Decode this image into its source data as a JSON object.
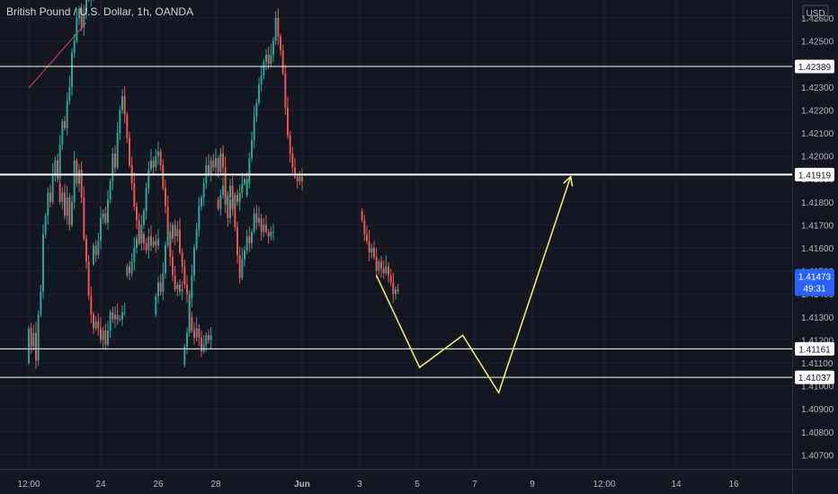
{
  "header": {
    "title": "British Pound / U.S. Dollar, 1h, OANDA"
  },
  "currency_label": "USD",
  "colors": {
    "background": "#131722",
    "grid": "#1f2330",
    "up": "#26a69a",
    "down": "#ef5350",
    "axis_text": "#b2b5be",
    "hline": "#ffffff",
    "projection": "#fff06a",
    "trendline": "#e0424a",
    "current_price_bg": "#2962ff",
    "label_bg": "#ffffff",
    "label_text": "#131722"
  },
  "chart_data": {
    "type": "candlestick",
    "title": "British Pound / U.S. Dollar, 1h, OANDA",
    "ylim": [
      1.407,
      1.426
    ],
    "y_ticks": [
      "1.42600",
      "1.42500",
      "1.42400",
      "1.42300",
      "1.42200",
      "1.42100",
      "1.42000",
      "1.41900",
      "1.41800",
      "1.41700",
      "1.41600",
      "1.41500",
      "1.41400",
      "1.41300",
      "1.41200",
      "1.41100",
      "1.41000",
      "1.40900",
      "1.40800",
      "1.40700"
    ],
    "x_ticks": [
      "12:00",
      "24",
      "26",
      "28",
      "Jun",
      "3",
      "5",
      "7",
      "9",
      "12:00",
      "14",
      "16"
    ],
    "horizontal_levels": [
      {
        "label": "1.42389",
        "value": 1.42389,
        "style": "thin"
      },
      {
        "label": "1.41919",
        "value": 1.41919,
        "style": "thick"
      },
      {
        "label": "1.41161",
        "value": 1.41161,
        "style": "thin"
      },
      {
        "label": "1.41037",
        "value": 1.41037,
        "style": "thin"
      }
    ],
    "current_price": {
      "value": "1.41473",
      "countdown": "49:31"
    },
    "projection_path": [
      {
        "x": "2 Jun 14:00",
        "y": 1.4148
      },
      {
        "x": "4 Jun 02:00",
        "y": 1.4108
      },
      {
        "x": "5 Jun 14:00",
        "y": 1.4122
      },
      {
        "x": "6 Jun 20:00",
        "y": 1.4097
      },
      {
        "x": "9 Jun 08:00",
        "y": 1.4191
      }
    ],
    "trendline": {
      "from": {
        "x": "21 May 12:00",
        "y": 1.42295
      },
      "to": {
        "x": "23 May 12:00",
        "y": 1.4258
      }
    },
    "segments": [
      {
        "from": "21 May 12:00",
        "value": 1.411,
        "path": [
          0.0015,
          -0.0008,
          0.0006,
          -0.0012,
          0.002,
          0.001,
          0.0025,
          0.0008,
          0.001,
          -0.0004,
          0.0012,
          0.0006,
          -0.0008,
          0.0015,
          0.001,
          -0.0003,
          0.0012,
          0.0006,
          0.0015,
          0.0005,
          0.001,
          0.0004,
          -0.0008,
          0.0006,
          0.0008,
          -0.0002,
          0.0003,
          -0.0002
        ]
      },
      {
        "from": "22 May 14:00",
        "value": 1.4188,
        "path": [
          -0.0008,
          0.0004,
          -0.001,
          0.0008,
          -0.0012,
          0.001,
          0.0018,
          -0.001,
          0.0006,
          -0.0012,
          -0.0018,
          -0.001,
          -0.0015,
          -0.0008,
          -0.0006,
          0.0003,
          -0.0003,
          -0.0005,
          0.0004,
          -0.0006,
          0.0006,
          0.0008,
          -0.0003,
          0.0002,
          -0.0002,
          0.0,
          0.0003,
          0.0
        ]
      },
      {
        "from": "23 May 18:00",
        "value": 1.4153,
        "path": [
          0.0008,
          -0.0004,
          0.0006,
          0.001,
          0.0002,
          -0.0004,
          0.001,
          0.0008,
          0.0012,
          -0.0006,
          0.0015,
          0.001,
          0.0006,
          -0.0008,
          -0.001,
          -0.0012,
          -0.0008,
          -0.001,
          -0.0006,
          -0.0008,
          0.0002,
          -0.0004,
          -0.0003,
          0.0006,
          -0.0004,
          0.0002,
          -0.0002,
          0.0003
        ]
      },
      {
        "from": "24 May 22:00",
        "value": 1.4148,
        "path": [
          0.0004,
          -0.0003,
          0.0005,
          0.0006,
          0.0004,
          -0.0002,
          0.0008,
          0.0006,
          0.001,
          0.0008,
          0.0004,
          -0.0003,
          0.0005,
          0.0002,
          -0.0006,
          -0.001,
          -0.0008,
          -0.0012,
          -0.001,
          -0.0008,
          -0.0006,
          0.0002,
          -0.0003,
          0.0001
        ]
      },
      {
        "from": "25 May 22:00",
        "value": 1.4131,
        "path": [
          0.0008,
          0.0006,
          -0.0004,
          0.0008,
          0.0012,
          0.0006,
          -0.0003,
          0.0006,
          -0.0005,
          0.0003,
          -0.001,
          -0.0006,
          -0.0008,
          -0.0004,
          -0.001,
          -0.0006,
          -0.0003,
          0.0004,
          -0.0004,
          -0.0006,
          0.0003,
          0.0004,
          -0.0002,
          0.0002
        ]
      },
      {
        "from": "26 May 22:00",
        "value": 1.4109,
        "path": [
          0.0008,
          0.0006,
          0.0015,
          0.001,
          0.0012,
          0.0008,
          0.001,
          0.0004,
          0.0006,
          0.0008,
          -0.0004,
          0.0006,
          -0.0003,
          0.0004,
          -0.0006,
          0.0008,
          -0.0006,
          -0.0012,
          -0.001,
          0.0008,
          -0.0004,
          0.0006,
          -0.0003,
          0.0004,
          0.0004,
          0.0002,
          -0.0002,
          0.0002
        ]
      },
      {
        "from": "28 May 02:00",
        "value": 1.4181,
        "path": [
          -0.0004,
          0.0006,
          0.0004,
          -0.0008,
          0.0003,
          0.0005,
          -0.001,
          -0.0008,
          -0.0012,
          -0.001,
          0.0008,
          0.0004,
          0.0006,
          -0.0003,
          0.0005,
          0.0008,
          -0.0004,
          0.0002,
          -0.0006,
          0.0003,
          -0.0003,
          -0.0002,
          0.0002,
          0.0
        ]
      },
      {
        "from": "29 May 02:00",
        "value": 1.4183,
        "path": [
          0.0006,
          0.001,
          0.0008,
          0.001,
          0.0006,
          0.0008,
          0.0004,
          0.0006,
          0.0003,
          -0.0004,
          0.0004,
          0.0006,
          0.001,
          -0.0008,
          -0.0006,
          -0.001,
          -0.0015,
          -0.0012,
          -0.0008,
          -0.0006,
          -0.0004,
          -0.0002,
          0.0002,
          -0.0002
        ]
      },
      {
        "from": "2 Jun 02:00",
        "value": 1.4176,
        "path": [
          -0.0004,
          -0.0006,
          -0.0003,
          -0.0005,
          0.0002,
          -0.0004,
          -0.0006,
          0.0004,
          -0.0003,
          -0.0002,
          0.0003,
          -0.0004,
          -0.0003,
          -0.0005,
          0.0002,
          -0.0001
        ]
      }
    ]
  }
}
